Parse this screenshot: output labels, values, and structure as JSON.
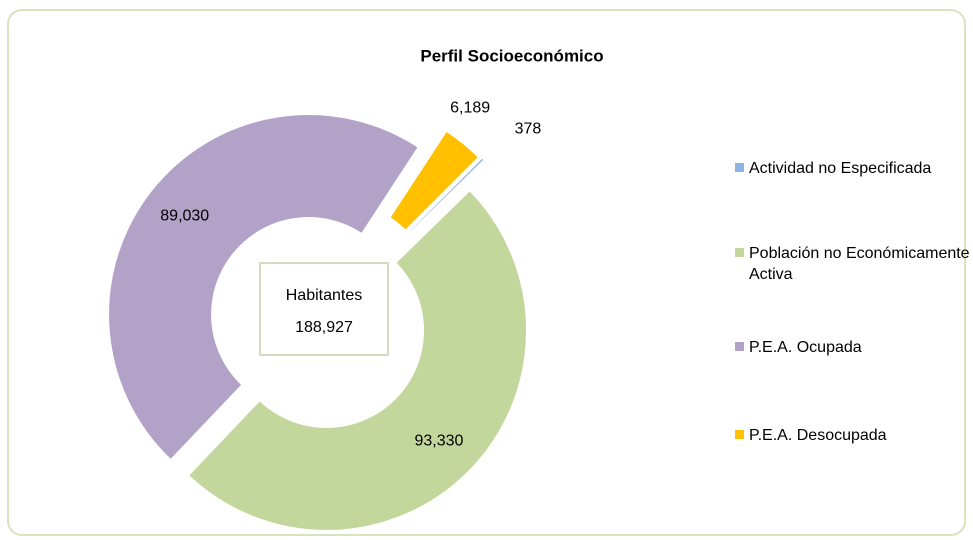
{
  "chart_data": {
    "type": "donut",
    "title": "Perfil Socioeconómico",
    "categories": [
      "Actividad no Especificada",
      "Población no Económicamente Activa",
      "P.E.A. Ocupada",
      "P.E.A. Desocupada"
    ],
    "values": [
      378,
      93330,
      89030,
      6189
    ],
    "value_labels": [
      "378",
      "93,330",
      "89,030",
      "6,189"
    ],
    "colors": [
      "#8eb4e3",
      "#c3d69b",
      "#b3a2c7",
      "#ffc000"
    ],
    "center_label": "Habitantes",
    "total": 188927,
    "total_label": "188,927",
    "legend": "right"
  }
}
